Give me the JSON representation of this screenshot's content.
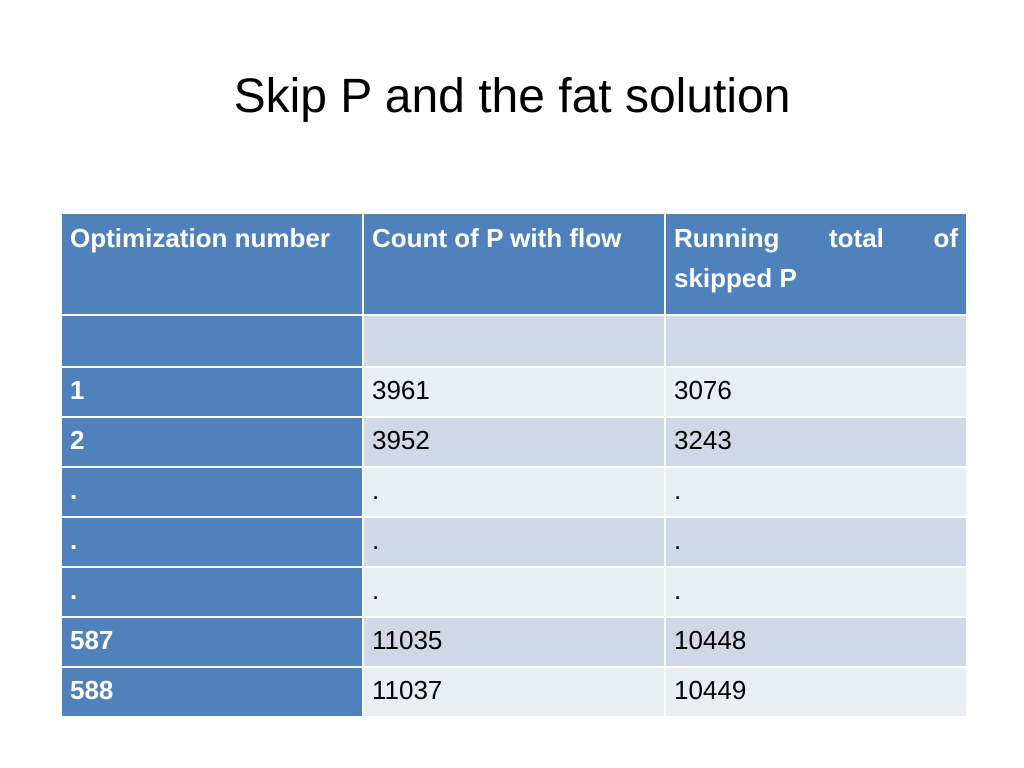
{
  "slide": {
    "title": "Skip P and the fat solution"
  },
  "table": {
    "headers": [
      "Optimization number",
      "Count of P with flow",
      "Running total of skipped P"
    ],
    "rows": [
      [
        "",
        "",
        ""
      ],
      [
        "1",
        "3961",
        "3076"
      ],
      [
        "2",
        "3952",
        "3243"
      ],
      [
        ".",
        ".",
        "."
      ],
      [
        ".",
        ".",
        "."
      ],
      [
        ".",
        ".",
        "."
      ],
      [
        "587",
        "11035",
        "10448"
      ],
      [
        "588",
        "11037",
        "10449"
      ]
    ]
  },
  "colors": {
    "header_bg": "#4f81bd",
    "row_band_dark": "#d0d8e8",
    "row_band_light": "#e9edf4"
  }
}
